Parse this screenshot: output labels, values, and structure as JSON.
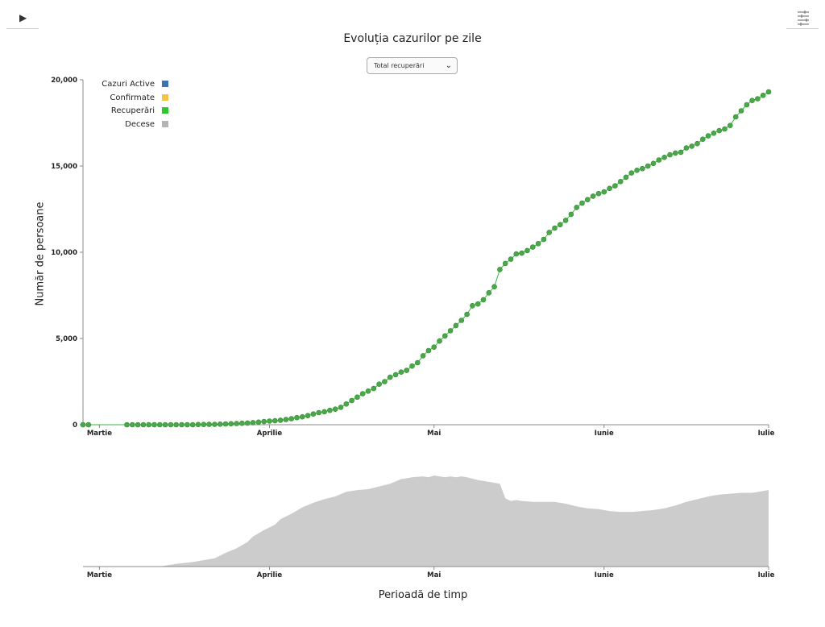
{
  "controls": {
    "play_label": "▶",
    "select_value": "Total recuperări"
  },
  "icons": {
    "play": "play-icon",
    "settings": "sliders-icon",
    "dropdown": "chevron-down-icon"
  },
  "colors": {
    "recoveries_line": "#3cb53c",
    "recoveries_point": "#4aa84a",
    "active": "#3b74b0",
    "confirmed": "#f5c242",
    "recovered": "#2ec82e",
    "deaths": "#b4b4b4",
    "context_area": "#cccccc"
  },
  "chart_data": [
    {
      "type": "line",
      "title": "Evoluția cazurilor pe zile",
      "xlabel": "",
      "ylabel": "Număr de persoane",
      "y_ticks": [
        0,
        5000,
        10000,
        15000,
        20000
      ],
      "y_tick_labels": [
        "0",
        "5,000",
        "10,000",
        "15,000",
        "20,000"
      ],
      "ylim": [
        0,
        20000
      ],
      "x_tick_labels": [
        "Martie",
        "Aprilie",
        "Mai",
        "Iunie",
        "Iulie"
      ],
      "x_tick_days": [
        3,
        34,
        64,
        95,
        125
      ],
      "xlim_days": [
        0,
        125
      ],
      "legend": [
        "Cazuri Active",
        "Confirmate",
        "Recuperări",
        "Decese"
      ],
      "legend_position": "top-left",
      "series": [
        {
          "name": "Recuperări",
          "x_days": [
            0,
            1,
            8,
            9,
            10,
            11,
            12,
            13,
            14,
            15,
            16,
            17,
            18,
            19,
            20,
            21,
            22,
            23,
            24,
            25,
            26,
            27,
            28,
            29,
            30,
            31,
            32,
            33,
            34,
            35,
            36,
            37,
            38,
            39,
            40,
            41,
            42,
            43,
            44,
            45,
            46,
            47,
            48,
            49,
            50,
            51,
            52,
            53,
            54,
            55,
            56,
            57,
            58,
            59,
            60,
            61,
            62,
            63,
            64,
            65,
            66,
            67,
            68,
            69,
            70,
            71,
            72,
            73,
            74,
            75,
            76,
            77,
            78,
            79,
            80,
            81,
            82,
            83,
            84,
            85,
            86,
            87,
            88,
            89,
            90,
            91,
            92,
            93,
            94,
            95,
            96,
            97,
            98,
            99,
            100,
            101,
            102,
            103,
            104,
            105,
            106,
            107,
            108,
            109,
            110,
            111,
            112,
            113,
            114,
            115,
            116,
            117,
            118,
            119,
            120,
            121,
            122,
            123,
            124,
            125
          ],
          "values": [
            0,
            0,
            0,
            0,
            0,
            0,
            0,
            0,
            0,
            0,
            0,
            0,
            0,
            0,
            0,
            10,
            15,
            20,
            25,
            35,
            45,
            55,
            70,
            85,
            100,
            120,
            150,
            180,
            210,
            230,
            260,
            300,
            350,
            410,
            460,
            530,
            620,
            700,
            750,
            830,
            900,
            1010,
            1200,
            1400,
            1600,
            1800,
            1950,
            2100,
            2350,
            2500,
            2750,
            2900,
            3050,
            3150,
            3400,
            3600,
            4000,
            4300,
            4500,
            4850,
            5150,
            5450,
            5750,
            6050,
            6400,
            6900,
            7000,
            7250,
            7650,
            8000,
            9000,
            9350,
            9600,
            9900,
            9950,
            10100,
            10300,
            10500,
            10750,
            11150,
            11400,
            11600,
            11850,
            12200,
            12600,
            12850,
            13050,
            13250,
            13400,
            13500,
            13700,
            13850,
            14100,
            14350,
            14600,
            14750,
            14850,
            15000,
            15150,
            15350,
            15500,
            15650,
            15750,
            15800,
            16050,
            16150,
            16300,
            16550,
            16750,
            16900,
            17050,
            17150,
            17350,
            17850,
            18200,
            18550,
            18800,
            18900,
            19100,
            19300
          ]
        }
      ]
    },
    {
      "type": "area",
      "title": "",
      "xlabel": "Perioadă de timp",
      "ylabel": "",
      "x_tick_labels": [
        "Martie",
        "Aprilie",
        "Mai",
        "Iunie",
        "Iulie"
      ],
      "x_tick_days": [
        3,
        34,
        64,
        95,
        125
      ],
      "xlim_days": [
        0,
        125
      ],
      "ylim": [
        0,
        1
      ],
      "series": [
        {
          "name": "",
          "x_days": [
            0,
            14,
            17,
            20,
            22,
            24,
            26,
            28,
            30,
            31,
            33,
            35,
            36,
            38,
            40,
            42,
            44,
            46,
            48,
            50,
            52,
            54,
            56,
            58,
            60,
            62,
            63,
            64,
            65,
            66,
            67,
            68,
            69,
            70,
            72,
            74,
            76,
            77,
            78,
            79,
            80,
            82,
            84,
            86,
            88,
            90,
            92,
            94,
            96,
            98,
            100,
            102,
            104,
            106,
            108,
            110,
            112,
            114,
            116,
            118,
            120,
            122,
            124,
            125
          ],
          "values": [
            0,
            0,
            0.03,
            0.05,
            0.07,
            0.09,
            0.15,
            0.2,
            0.27,
            0.33,
            0.4,
            0.46,
            0.52,
            0.58,
            0.65,
            0.7,
            0.74,
            0.77,
            0.82,
            0.84,
            0.85,
            0.88,
            0.91,
            0.96,
            0.98,
            0.99,
            0.98,
            1.0,
            0.99,
            0.98,
            0.99,
            0.98,
            0.99,
            0.98,
            0.95,
            0.93,
            0.91,
            0.75,
            0.72,
            0.73,
            0.72,
            0.71,
            0.71,
            0.71,
            0.69,
            0.66,
            0.64,
            0.63,
            0.61,
            0.6,
            0.6,
            0.61,
            0.62,
            0.64,
            0.67,
            0.71,
            0.74,
            0.77,
            0.79,
            0.8,
            0.81,
            0.81,
            0.83,
            0.84
          ]
        }
      ]
    }
  ]
}
